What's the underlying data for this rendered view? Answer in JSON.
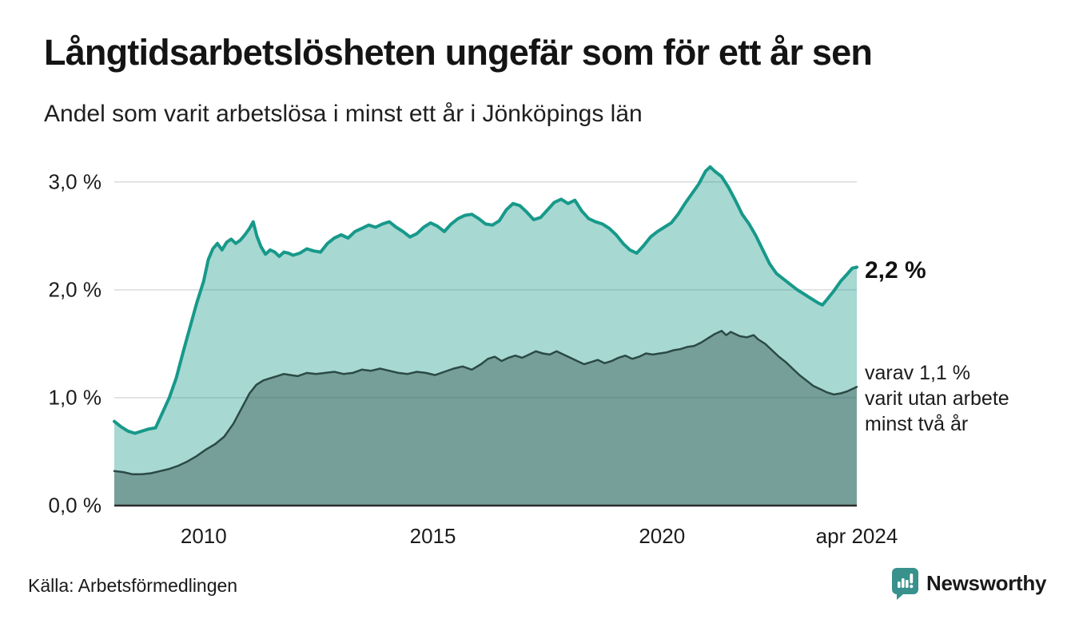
{
  "header": {
    "title": "Långtidsarbetslösheten ungefär som för ett år sen",
    "subtitle": "Andel som varit arbetslösa i minst ett år i Jönköpings län"
  },
  "annotations": {
    "end_value": "2,2 %",
    "two_year_note": "varav 1,1 %\nvarit utan arbete\nminst två år"
  },
  "footer": {
    "source": "Källa: Arbetsförmedlingen",
    "brand": "Newsworthy"
  },
  "colors": {
    "teal_line": "#17998a",
    "light_fill": "rgba(23,153,138,0.38)",
    "dark_line": "#2c4a45",
    "dark_fill": "rgba(44,74,69,0.40)",
    "gridline": "#d9dbde",
    "axis": "#2b2b2b",
    "brand_teal": "#38918c",
    "text": "#1a1a1a"
  },
  "chart_data": {
    "type": "area",
    "title": "Långtidsarbetslösheten ungefär som för ett år sen",
    "subtitle": "Andel som varit arbetslösa i minst ett år i Jönköpings län",
    "unit": "%",
    "grid": true,
    "legend_position": "annotations-right",
    "x_axis": {
      "range": [
        2008.05,
        2024.25
      ],
      "ticks": [
        {
          "label": "2010",
          "year": 2010
        },
        {
          "label": "2015",
          "year": 2015
        },
        {
          "label": "2020",
          "year": 2020
        },
        {
          "label": "apr 2024",
          "year": 2024.25
        }
      ]
    },
    "y_axis": {
      "range": [
        0,
        3.25
      ],
      "ticks": [
        {
          "label": "0,0 %",
          "value": 0
        },
        {
          "label": "1,0 %",
          "value": 1
        },
        {
          "label": "2,0 %",
          "value": 2
        },
        {
          "label": "3,0 %",
          "value": 3
        }
      ]
    },
    "series": [
      {
        "name": "Arbetslösa minst ett år",
        "end_value_pct": 2.2,
        "color": "#17998a",
        "fill": "rgba(23,153,138,0.38)",
        "stroke_width": 4,
        "points": [
          [
            2008.05,
            0.78
          ],
          [
            2008.2,
            0.73
          ],
          [
            2008.35,
            0.69
          ],
          [
            2008.5,
            0.67
          ],
          [
            2008.65,
            0.69
          ],
          [
            2008.8,
            0.71
          ],
          [
            2008.95,
            0.72
          ],
          [
            2009.1,
            0.86
          ],
          [
            2009.25,
            1.0
          ],
          [
            2009.4,
            1.18
          ],
          [
            2009.55,
            1.42
          ],
          [
            2009.7,
            1.65
          ],
          [
            2009.85,
            1.88
          ],
          [
            2010.0,
            2.08
          ],
          [
            2010.1,
            2.28
          ],
          [
            2010.2,
            2.38
          ],
          [
            2010.3,
            2.43
          ],
          [
            2010.4,
            2.37
          ],
          [
            2010.5,
            2.44
          ],
          [
            2010.6,
            2.47
          ],
          [
            2010.7,
            2.43
          ],
          [
            2010.8,
            2.46
          ],
          [
            2010.9,
            2.51
          ],
          [
            2011.0,
            2.57
          ],
          [
            2011.08,
            2.63
          ],
          [
            2011.16,
            2.5
          ],
          [
            2011.25,
            2.4
          ],
          [
            2011.35,
            2.33
          ],
          [
            2011.45,
            2.37
          ],
          [
            2011.55,
            2.35
          ],
          [
            2011.65,
            2.31
          ],
          [
            2011.75,
            2.35
          ],
          [
            2011.85,
            2.34
          ],
          [
            2011.95,
            2.32
          ],
          [
            2012.1,
            2.34
          ],
          [
            2012.25,
            2.38
          ],
          [
            2012.4,
            2.36
          ],
          [
            2012.55,
            2.35
          ],
          [
            2012.7,
            2.43
          ],
          [
            2012.85,
            2.48
          ],
          [
            2013.0,
            2.51
          ],
          [
            2013.15,
            2.48
          ],
          [
            2013.3,
            2.54
          ],
          [
            2013.45,
            2.57
          ],
          [
            2013.6,
            2.6
          ],
          [
            2013.75,
            2.58
          ],
          [
            2013.9,
            2.61
          ],
          [
            2014.05,
            2.63
          ],
          [
            2014.2,
            2.58
          ],
          [
            2014.35,
            2.54
          ],
          [
            2014.5,
            2.49
          ],
          [
            2014.65,
            2.52
          ],
          [
            2014.8,
            2.58
          ],
          [
            2014.95,
            2.62
          ],
          [
            2015.1,
            2.59
          ],
          [
            2015.25,
            2.54
          ],
          [
            2015.4,
            2.61
          ],
          [
            2015.55,
            2.66
          ],
          [
            2015.7,
            2.69
          ],
          [
            2015.85,
            2.7
          ],
          [
            2016.0,
            2.66
          ],
          [
            2016.15,
            2.61
          ],
          [
            2016.3,
            2.6
          ],
          [
            2016.45,
            2.64
          ],
          [
            2016.6,
            2.74
          ],
          [
            2016.75,
            2.8
          ],
          [
            2016.9,
            2.78
          ],
          [
            2017.05,
            2.72
          ],
          [
            2017.2,
            2.65
          ],
          [
            2017.35,
            2.67
          ],
          [
            2017.5,
            2.74
          ],
          [
            2017.65,
            2.81
          ],
          [
            2017.8,
            2.84
          ],
          [
            2017.95,
            2.8
          ],
          [
            2018.1,
            2.83
          ],
          [
            2018.25,
            2.73
          ],
          [
            2018.4,
            2.66
          ],
          [
            2018.55,
            2.63
          ],
          [
            2018.7,
            2.61
          ],
          [
            2018.85,
            2.57
          ],
          [
            2019.0,
            2.51
          ],
          [
            2019.15,
            2.43
          ],
          [
            2019.3,
            2.37
          ],
          [
            2019.45,
            2.34
          ],
          [
            2019.6,
            2.41
          ],
          [
            2019.75,
            2.49
          ],
          [
            2019.9,
            2.54
          ],
          [
            2020.05,
            2.58
          ],
          [
            2020.2,
            2.62
          ],
          [
            2020.35,
            2.7
          ],
          [
            2020.5,
            2.8
          ],
          [
            2020.65,
            2.89
          ],
          [
            2020.8,
            2.98
          ],
          [
            2020.95,
            3.1
          ],
          [
            2021.05,
            3.14
          ],
          [
            2021.15,
            3.1
          ],
          [
            2021.3,
            3.05
          ],
          [
            2021.45,
            2.95
          ],
          [
            2021.6,
            2.83
          ],
          [
            2021.75,
            2.7
          ],
          [
            2021.9,
            2.61
          ],
          [
            2022.05,
            2.5
          ],
          [
            2022.2,
            2.37
          ],
          [
            2022.35,
            2.24
          ],
          [
            2022.5,
            2.15
          ],
          [
            2022.65,
            2.1
          ],
          [
            2022.8,
            2.05
          ],
          [
            2022.95,
            2.0
          ],
          [
            2023.1,
            1.96
          ],
          [
            2023.25,
            1.92
          ],
          [
            2023.4,
            1.88
          ],
          [
            2023.5,
            1.86
          ],
          [
            2023.6,
            1.91
          ],
          [
            2023.75,
            1.99
          ],
          [
            2023.9,
            2.08
          ],
          [
            2024.05,
            2.15
          ],
          [
            2024.15,
            2.2
          ],
          [
            2024.25,
            2.21
          ]
        ]
      },
      {
        "name": "Varav utan arbete minst två år",
        "end_value_pct": 1.1,
        "color": "#2c4a45",
        "fill": "rgba(44,74,69,0.40)",
        "stroke_width": 2.5,
        "points": [
          [
            2008.05,
            0.32
          ],
          [
            2008.25,
            0.31
          ],
          [
            2008.45,
            0.29
          ],
          [
            2008.65,
            0.29
          ],
          [
            2008.85,
            0.3
          ],
          [
            2009.05,
            0.32
          ],
          [
            2009.25,
            0.34
          ],
          [
            2009.45,
            0.37
          ],
          [
            2009.65,
            0.41
          ],
          [
            2009.85,
            0.46
          ],
          [
            2010.05,
            0.52
          ],
          [
            2010.25,
            0.57
          ],
          [
            2010.45,
            0.64
          ],
          [
            2010.65,
            0.76
          ],
          [
            2010.85,
            0.92
          ],
          [
            2011.0,
            1.04
          ],
          [
            2011.15,
            1.12
          ],
          [
            2011.3,
            1.16
          ],
          [
            2011.45,
            1.18
          ],
          [
            2011.6,
            1.2
          ],
          [
            2011.75,
            1.22
          ],
          [
            2011.9,
            1.21
          ],
          [
            2012.05,
            1.2
          ],
          [
            2012.25,
            1.23
          ],
          [
            2012.45,
            1.22
          ],
          [
            2012.65,
            1.23
          ],
          [
            2012.85,
            1.24
          ],
          [
            2013.05,
            1.22
          ],
          [
            2013.25,
            1.23
          ],
          [
            2013.45,
            1.26
          ],
          [
            2013.65,
            1.25
          ],
          [
            2013.85,
            1.27
          ],
          [
            2014.05,
            1.25
          ],
          [
            2014.25,
            1.23
          ],
          [
            2014.45,
            1.22
          ],
          [
            2014.65,
            1.24
          ],
          [
            2014.85,
            1.23
          ],
          [
            2015.05,
            1.21
          ],
          [
            2015.25,
            1.24
          ],
          [
            2015.45,
            1.27
          ],
          [
            2015.65,
            1.29
          ],
          [
            2015.85,
            1.26
          ],
          [
            2016.05,
            1.31
          ],
          [
            2016.2,
            1.36
          ],
          [
            2016.35,
            1.38
          ],
          [
            2016.5,
            1.34
          ],
          [
            2016.65,
            1.37
          ],
          [
            2016.8,
            1.39
          ],
          [
            2016.95,
            1.37
          ],
          [
            2017.1,
            1.4
          ],
          [
            2017.25,
            1.43
          ],
          [
            2017.4,
            1.41
          ],
          [
            2017.55,
            1.4
          ],
          [
            2017.7,
            1.43
          ],
          [
            2017.85,
            1.4
          ],
          [
            2018.0,
            1.37
          ],
          [
            2018.15,
            1.34
          ],
          [
            2018.3,
            1.31
          ],
          [
            2018.45,
            1.33
          ],
          [
            2018.6,
            1.35
          ],
          [
            2018.75,
            1.32
          ],
          [
            2018.9,
            1.34
          ],
          [
            2019.05,
            1.37
          ],
          [
            2019.2,
            1.39
          ],
          [
            2019.35,
            1.36
          ],
          [
            2019.5,
            1.38
          ],
          [
            2019.65,
            1.41
          ],
          [
            2019.8,
            1.4
          ],
          [
            2019.95,
            1.41
          ],
          [
            2020.1,
            1.42
          ],
          [
            2020.25,
            1.44
          ],
          [
            2020.4,
            1.45
          ],
          [
            2020.55,
            1.47
          ],
          [
            2020.7,
            1.48
          ],
          [
            2020.85,
            1.51
          ],
          [
            2021.0,
            1.55
          ],
          [
            2021.15,
            1.59
          ],
          [
            2021.3,
            1.62
          ],
          [
            2021.4,
            1.58
          ],
          [
            2021.5,
            1.61
          ],
          [
            2021.6,
            1.59
          ],
          [
            2021.7,
            1.57
          ],
          [
            2021.85,
            1.56
          ],
          [
            2022.0,
            1.58
          ],
          [
            2022.1,
            1.54
          ],
          [
            2022.25,
            1.5
          ],
          [
            2022.4,
            1.44
          ],
          [
            2022.55,
            1.38
          ],
          [
            2022.7,
            1.33
          ],
          [
            2022.85,
            1.27
          ],
          [
            2023.0,
            1.21
          ],
          [
            2023.15,
            1.16
          ],
          [
            2023.3,
            1.11
          ],
          [
            2023.45,
            1.08
          ],
          [
            2023.6,
            1.05
          ],
          [
            2023.75,
            1.03
          ],
          [
            2023.9,
            1.04
          ],
          [
            2024.05,
            1.06
          ],
          [
            2024.25,
            1.1
          ]
        ]
      }
    ]
  }
}
